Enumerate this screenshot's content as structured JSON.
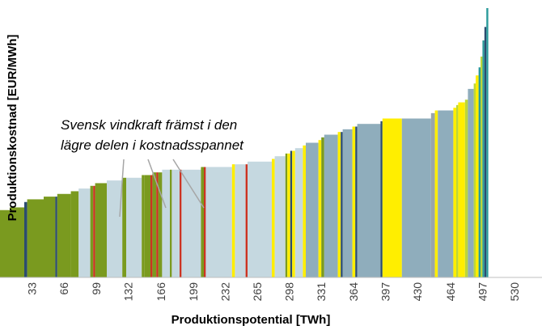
{
  "chart_data": {
    "type": "bar",
    "subtype": "supply-cost-curve",
    "xlabel": "Produktionspotential [TWh]",
    "ylabel": "Produktionskostnad [EUR/MWh]",
    "x_ticks": [
      "33",
      "66",
      "99",
      "132",
      "166",
      "199",
      "232",
      "265",
      "298",
      "331",
      "364",
      "397",
      "430",
      "464",
      "497",
      "530"
    ],
    "xlim": [
      0,
      555
    ],
    "ylim": [
      0,
      100
    ],
    "annotation": {
      "lines": [
        "Svensk vindkraft främst i den",
        "lägre delen i kostnadsspannet"
      ]
    },
    "colors": {
      "olive": "#7a9a1f",
      "lightblue": "#c5d8e0",
      "slate": "#8fadbc",
      "yellow": "#ffee00",
      "red": "#cc3322",
      "navy": "#2b4c6f",
      "teal": "#2a9a9a",
      "grey": "#9aa5a8",
      "lime": "#bcd63a"
    },
    "segments": [
      {
        "w": 10,
        "v": 25,
        "c": "olive"
      },
      {
        "w": 15,
        "v": 26,
        "c": "olive"
      },
      {
        "w": 3,
        "v": 28,
        "c": "navy"
      },
      {
        "w": 17,
        "v": 29,
        "c": "olive"
      },
      {
        "w": 12,
        "v": 30,
        "c": "olive"
      },
      {
        "w": 2,
        "v": 30,
        "c": "navy"
      },
      {
        "w": 14,
        "v": 31,
        "c": "olive"
      },
      {
        "w": 8,
        "v": 32,
        "c": "olive"
      },
      {
        "w": 12,
        "v": 33,
        "c": "lightblue"
      },
      {
        "w": 3,
        "v": 34,
        "c": "olive"
      },
      {
        "w": 2,
        "v": 34,
        "c": "red"
      },
      {
        "w": 12,
        "v": 35,
        "c": "olive"
      },
      {
        "w": 16,
        "v": 36,
        "c": "lightblue"
      },
      {
        "w": 4,
        "v": 37,
        "c": "olive"
      },
      {
        "w": 16,
        "v": 37,
        "c": "lightblue"
      },
      {
        "w": 3,
        "v": 38,
        "c": "olive"
      },
      {
        "w": 6,
        "v": 38,
        "c": "olive"
      },
      {
        "w": 2,
        "v": 38,
        "c": "red"
      },
      {
        "w": 4,
        "v": 39,
        "c": "olive"
      },
      {
        "w": 2,
        "v": 39,
        "c": "red"
      },
      {
        "w": 4,
        "v": 39,
        "c": "olive"
      },
      {
        "w": 8,
        "v": 40,
        "c": "lightblue"
      },
      {
        "w": 2,
        "v": 40,
        "c": "olive"
      },
      {
        "w": 8,
        "v": 40,
        "c": "lightblue"
      },
      {
        "w": 2,
        "v": 40,
        "c": "red"
      },
      {
        "w": 20,
        "v": 40,
        "c": "lightblue"
      },
      {
        "w": 3,
        "v": 41,
        "c": "olive"
      },
      {
        "w": 2,
        "v": 41,
        "c": "red"
      },
      {
        "w": 27,
        "v": 41,
        "c": "lightblue"
      },
      {
        "w": 3,
        "v": 42,
        "c": "yellow"
      },
      {
        "w": 11,
        "v": 42,
        "c": "lightblue"
      },
      {
        "w": 2,
        "v": 42,
        "c": "red"
      },
      {
        "w": 25,
        "v": 43,
        "c": "lightblue"
      },
      {
        "w": 3,
        "v": 44,
        "c": "yellow"
      },
      {
        "w": 11,
        "v": 45,
        "c": "lightblue"
      },
      {
        "w": 2,
        "v": 46,
        "c": "olive"
      },
      {
        "w": 3,
        "v": 46,
        "c": "yellow"
      },
      {
        "w": 2,
        "v": 47,
        "c": "navy"
      },
      {
        "w": 3,
        "v": 47,
        "c": "yellow"
      },
      {
        "w": 8,
        "v": 48,
        "c": "lightblue"
      },
      {
        "w": 3,
        "v": 49,
        "c": "yellow"
      },
      {
        "w": 13,
        "v": 50,
        "c": "slate"
      },
      {
        "w": 3,
        "v": 51,
        "c": "yellow"
      },
      {
        "w": 3,
        "v": 52,
        "c": "olive"
      },
      {
        "w": 14,
        "v": 53,
        "c": "slate"
      },
      {
        "w": 3,
        "v": 54,
        "c": "yellow"
      },
      {
        "w": 2,
        "v": 54,
        "c": "navy"
      },
      {
        "w": 10,
        "v": 55,
        "c": "slate"
      },
      {
        "w": 3,
        "v": 56,
        "c": "yellow"
      },
      {
        "w": 2,
        "v": 56,
        "c": "navy"
      },
      {
        "w": 24,
        "v": 57,
        "c": "slate"
      },
      {
        "w": 2,
        "v": 58,
        "c": "navy"
      },
      {
        "w": 20,
        "v": 59,
        "c": "yellow"
      },
      {
        "w": 30,
        "v": 59,
        "c": "slate"
      },
      {
        "w": 4,
        "v": 61,
        "c": "grey"
      },
      {
        "w": 3,
        "v": 62,
        "c": "yellow"
      },
      {
        "w": 16,
        "v": 62,
        "c": "slate"
      },
      {
        "w": 3,
        "v": 63,
        "c": "yellow"
      },
      {
        "w": 2,
        "v": 64,
        "c": "lime"
      },
      {
        "w": 7,
        "v": 65,
        "c": "yellow"
      },
      {
        "w": 3,
        "v": 66,
        "c": "lime"
      },
      {
        "w": 6,
        "v": 70,
        "c": "slate"
      },
      {
        "w": 2,
        "v": 72,
        "c": "lime"
      },
      {
        "w": 3,
        "v": 75,
        "c": "yellow"
      },
      {
        "w": 2,
        "v": 78,
        "c": "teal"
      },
      {
        "w": 2,
        "v": 82,
        "c": "lime"
      },
      {
        "w": 2,
        "v": 88,
        "c": "teal"
      },
      {
        "w": 2,
        "v": 93,
        "c": "navy"
      },
      {
        "w": 2,
        "v": 100,
        "c": "teal"
      }
    ]
  }
}
